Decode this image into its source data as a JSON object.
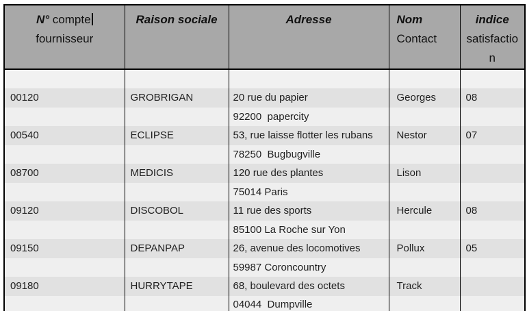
{
  "header": {
    "account": {
      "bold": "N°",
      "regular": " compte",
      "line2": "fournisseur"
    },
    "raison": "Raison sociale",
    "adresse": "Adresse",
    "nom": {
      "line1": "Nom",
      "line2": "Contact"
    },
    "indice": {
      "line1": "indice",
      "line2": "satisfactio",
      "line3": "n"
    }
  },
  "rows": [
    {
      "account": "00120",
      "name": "GROBRIGAN",
      "address1": "20 rue du papier",
      "address2": "92200  papercity",
      "contact": "Georges",
      "index": "08"
    },
    {
      "account": "00540",
      "name": "ECLIPSE",
      "address1": "53, rue laisse flotter les rubans",
      "address2": "78250  Bugbugville",
      "contact": "Nestor",
      "index": "07"
    },
    {
      "account": "08700",
      "name": "MEDICIS",
      "address1": "120 rue des plantes",
      "address2": "75014 Paris",
      "contact": "Lison",
      "index": ""
    },
    {
      "account": "09120",
      "name": "DISCOBOL",
      "address1": "11 rue des sports",
      "address2": "85100 La Roche sur Yon",
      "contact": "Hercule",
      "index": "08"
    },
    {
      "account": "09150",
      "name": "DEPANPAP",
      "address1": "26, avenue des locomotives",
      "address2": "59987 Coroncountry",
      "contact": "Pollux",
      "index": "05"
    },
    {
      "account": "09180",
      "name": "HURRYTAPE",
      "address1": "68, boulevard des octets",
      "address2": "04044  Dumpville",
      "contact": "Track",
      "index": ""
    }
  ],
  "colors": {
    "header_bg": "#a8a8a8",
    "row_primary_bg": "#e1e1e1",
    "row_secondary_bg": "#efefef",
    "spacer_bg": "#f1f1f1",
    "border": "#000000",
    "text": "#1f1f1f"
  }
}
